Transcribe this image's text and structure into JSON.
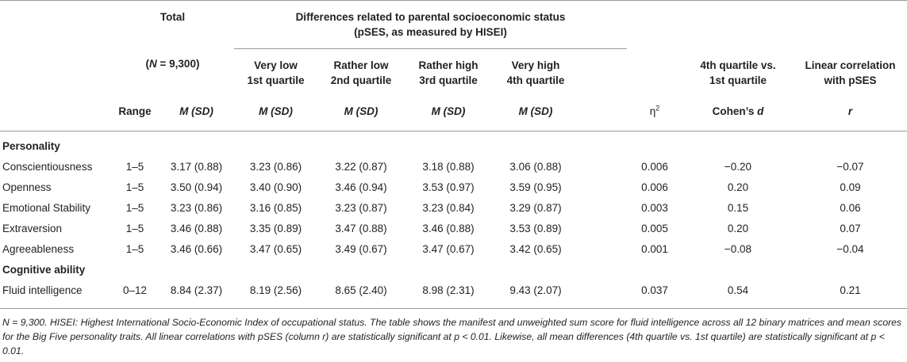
{
  "header": {
    "total_label": "Total",
    "n_label": "(N = 9,300)",
    "pses_title_line1": "Differences related to parental socioeconomic status",
    "pses_title_line2": "(pSES, as measured by HISEI)",
    "quartiles": [
      {
        "line1": "Very low",
        "line2": "1st quartile"
      },
      {
        "line1": "Rather low",
        "line2": "2nd quartile"
      },
      {
        "line1": "Rather high",
        "line2": "3rd quartile"
      },
      {
        "line1": "Very high",
        "line2": "4th quartile"
      }
    ],
    "cohen_title_line1": "4th quartile vs.",
    "cohen_title_line2": "1st quartile",
    "corr_title_line1": "Linear correlation",
    "corr_title_line2": "with pSES",
    "sub_range": "Range",
    "sub_msd_m": "M",
    "sub_msd_sd": "(SD)",
    "sub_eta": "η",
    "sub_eta_sup": "2",
    "sub_cohen_text": "Cohen’s",
    "sub_cohen_d": "d",
    "sub_r": "r"
  },
  "sections": [
    {
      "title": "Personality",
      "rows": [
        {
          "label": "Conscientiousness",
          "range": "1–5",
          "total": "3.17 (0.88)",
          "q1": "3.23 (0.86)",
          "q2": "3.22 (0.87)",
          "q3": "3.18 (0.88)",
          "q4": "3.06 (0.88)",
          "eta": "0.006",
          "d": "−0.20",
          "r": "−0.07"
        },
        {
          "label": "Openness",
          "range": "1–5",
          "total": "3.50 (0.94)",
          "q1": "3.40 (0.90)",
          "q2": "3.46 (0.94)",
          "q3": "3.53 (0.97)",
          "q4": "3.59 (0.95)",
          "eta": "0.006",
          "d": "0.20",
          "r": "0.09"
        },
        {
          "label": "Emotional Stability",
          "range": "1–5",
          "total": "3.23 (0.86)",
          "q1": "3.16 (0.85)",
          "q2": "3.23 (0.87)",
          "q3": "3.23 (0.84)",
          "q4": "3.29 (0.87)",
          "eta": "0.003",
          "d": "0.15",
          "r": "0.06"
        },
        {
          "label": "Extraversion",
          "range": "1–5",
          "total": "3.46 (0.88)",
          "q1": "3.35 (0.89)",
          "q2": "3.47 (0.88)",
          "q3": "3.46 (0.88)",
          "q4": "3.53 (0.89)",
          "eta": "0.005",
          "d": "0.20",
          "r": "0.07"
        },
        {
          "label": "Agreeableness",
          "range": "1–5",
          "total": "3.46 (0.66)",
          "q1": "3.47 (0.65)",
          "q2": "3.49 (0.67)",
          "q3": "3.47 (0.67)",
          "q4": "3.42 (0.65)",
          "eta": "0.001",
          "d": "−0.08",
          "r": "−0.04"
        }
      ]
    },
    {
      "title": "Cognitive ability",
      "rows": [
        {
          "label": "Fluid intelligence",
          "range": "0–12",
          "total": "8.84 (2.37)",
          "q1": "8.19 (2.56)",
          "q2": "8.65 (2.40)",
          "q3": "8.98 (2.31)",
          "q4": "9.43 (2.07)",
          "eta": "0.037",
          "d": "0.54",
          "r": "0.21"
        }
      ]
    }
  ],
  "footnote": "N = 9,300. HISEI: Highest International Socio-Economic Index of occupational status. The table shows the manifest and unweighted sum score for fluid intelligence across all 12 binary matrices and mean scores for the Big Five personality traits. All linear correlations with pSES (column r) are statistically significant at p < 0.01. Likewise, all mean differences (4th quartile vs. 1st quartile) are statistically significant at p < 0.01."
}
